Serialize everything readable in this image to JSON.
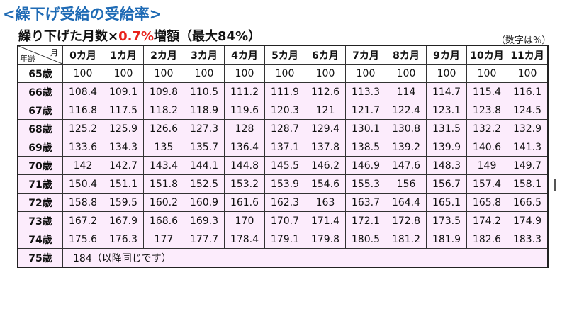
{
  "title": "<繰下げ受給の受給率>",
  "subtitle": {
    "prefix": "繰り下げた月数×",
    "highlight": "0.7%",
    "suffix": "増額（最大84%）"
  },
  "note": "（数字は%）",
  "table": {
    "corner_month": "月",
    "corner_age": "年齢",
    "columns": [
      "0カ月",
      "1カ月",
      "2カ月",
      "3カ月",
      "4カ月",
      "5カ月",
      "6カ月",
      "7カ月",
      "8カ月",
      "9カ月",
      "10カ月",
      "11カ月"
    ],
    "rows": [
      {
        "age": "65歳",
        "values": [
          "100",
          "100",
          "100",
          "100",
          "100",
          "100",
          "100",
          "100",
          "100",
          "100",
          "100",
          "100"
        ]
      },
      {
        "age": "66歳",
        "values": [
          "108.4",
          "109.1",
          "109.8",
          "110.5",
          "111.2",
          "111.9",
          "112.6",
          "113.3",
          "114",
          "114.7",
          "115.4",
          "116.1"
        ]
      },
      {
        "age": "67歳",
        "values": [
          "116.8",
          "117.5",
          "118.2",
          "118.9",
          "119.6",
          "120.3",
          "121",
          "121.7",
          "122.4",
          "123.1",
          "123.8",
          "124.5"
        ]
      },
      {
        "age": "68歳",
        "values": [
          "125.2",
          "125.9",
          "126.6",
          "127.3",
          "128",
          "128.7",
          "129.4",
          "130.1",
          "130.8",
          "131.5",
          "132.2",
          "132.9"
        ]
      },
      {
        "age": "69歳",
        "values": [
          "133.6",
          "134.3",
          "135",
          "135.7",
          "136.4",
          "137.1",
          "137.8",
          "138.5",
          "139.2",
          "139.9",
          "140.6",
          "141.3"
        ]
      },
      {
        "age": "70歳",
        "values": [
          "142",
          "142.7",
          "143.4",
          "144.1",
          "144.8",
          "145.5",
          "146.2",
          "146.9",
          "147.6",
          "148.3",
          "149",
          "149.7"
        ]
      },
      {
        "age": "71歳",
        "values": [
          "150.4",
          "151.1",
          "151.8",
          "152.5",
          "153.2",
          "153.9",
          "154.6",
          "155.3",
          "156",
          "156.7",
          "157.4",
          "158.1"
        ]
      },
      {
        "age": "72歳",
        "values": [
          "158.8",
          "159.5",
          "160.2",
          "160.9",
          "161.6",
          "162.3",
          "163",
          "163.7",
          "164.4",
          "165.1",
          "165.8",
          "166.5"
        ]
      },
      {
        "age": "73歳",
        "values": [
          "167.2",
          "167.9",
          "168.6",
          "169.3",
          "170",
          "170.7",
          "171.4",
          "172.1",
          "172.8",
          "173.5",
          "174.2",
          "174.9"
        ]
      },
      {
        "age": "74歳",
        "values": [
          "175.6",
          "176.3",
          "177",
          "177.7",
          "178.4",
          "179.1",
          "179.8",
          "180.5",
          "181.2",
          "181.9",
          "182.6",
          "183.3"
        ]
      }
    ],
    "last_row": {
      "age": "75歳",
      "text": "184（以降同じです）"
    }
  },
  "colors": {
    "title": "#1f6bb5",
    "highlight": "#e8211b",
    "row_bg": "#fcecfc"
  }
}
